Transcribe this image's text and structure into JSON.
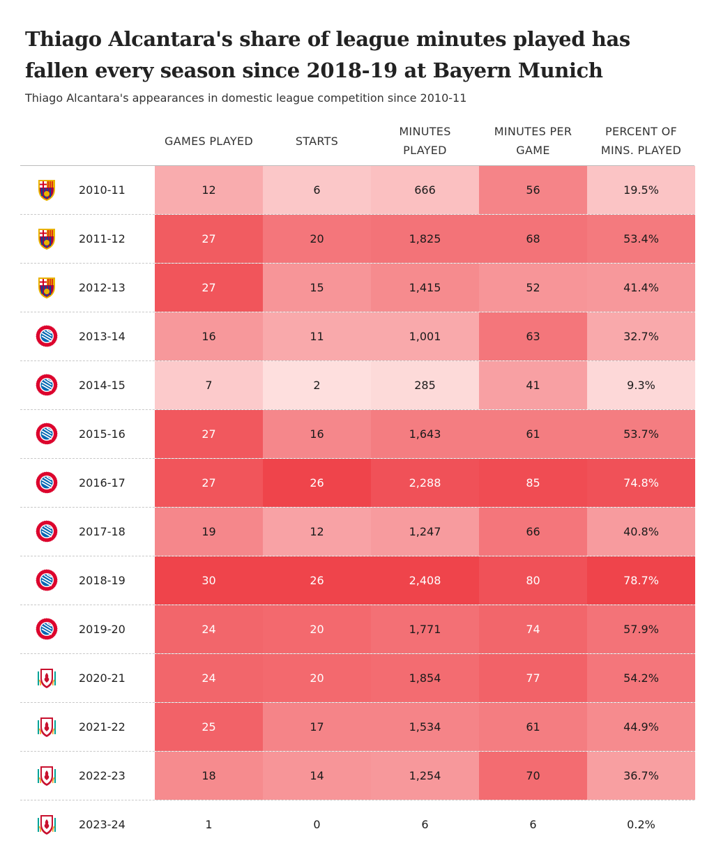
{
  "title": "Thiago Alcantara's share of league minutes played has fallen every season since 2018-19 at Bayern Munich",
  "subtitle": "Thiago Alcantara's appearances in domestic league competition since 2010-11",
  "chart_data": {
    "type": "table",
    "columns": [
      "GAMES PLAYED",
      "STARTS",
      "MINUTES PLAYED",
      "MINUTES PER GAME",
      "PERCENT OF MINS. PLAYED"
    ],
    "rows": [
      {
        "club": "barcelona",
        "season": "2010-11",
        "games": "12",
        "starts": "6",
        "minutes": "666",
        "mpg": "56",
        "pct": "19.5%",
        "shade": [
          0.38,
          0.22,
          0.26,
          0.62,
          0.24
        ]
      },
      {
        "club": "barcelona",
        "season": "2011-12",
        "games": "27",
        "starts": "20",
        "minutes": "1,825",
        "mpg": "68",
        "pct": "53.4%",
        "shade": [
          0.86,
          0.7,
          0.72,
          0.72,
          0.68
        ]
      },
      {
        "club": "barcelona",
        "season": "2012-13",
        "games": "27",
        "starts": "15",
        "minutes": "1,415",
        "mpg": "52",
        "pct": "41.4%",
        "shade": [
          0.9,
          0.52,
          0.58,
          0.52,
          0.5
        ]
      },
      {
        "club": "bayern",
        "season": "2013-14",
        "games": "16",
        "starts": "11",
        "minutes": "1,001",
        "mpg": "63",
        "pct": "32.7%",
        "shade": [
          0.5,
          0.4,
          0.4,
          0.7,
          0.4
        ]
      },
      {
        "club": "bayern",
        "season": "2014-15",
        "games": "7",
        "starts": "2",
        "minutes": "285",
        "mpg": "41",
        "pct": "9.3%",
        "shade": [
          0.2,
          0.08,
          0.11,
          0.45,
          0.12
        ]
      },
      {
        "club": "bayern",
        "season": "2015-16",
        "games": "27",
        "starts": "16",
        "minutes": "1,643",
        "mpg": "61",
        "pct": "53.7%",
        "shade": [
          0.88,
          0.6,
          0.66,
          0.66,
          0.66
        ]
      },
      {
        "club": "bayern",
        "season": "2016-17",
        "games": "27",
        "starts": "26",
        "minutes": "2,288",
        "mpg": "85",
        "pct": "74.8%",
        "shade": [
          0.9,
          1.0,
          0.92,
          0.95,
          0.92
        ]
      },
      {
        "club": "bayern",
        "season": "2017-18",
        "games": "19",
        "starts": "12",
        "minutes": "1,247",
        "mpg": "66",
        "pct": "40.8%",
        "shade": [
          0.6,
          0.44,
          0.48,
          0.7,
          0.48
        ]
      },
      {
        "club": "bayern",
        "season": "2018-19",
        "games": "30",
        "starts": "26",
        "minutes": "2,408",
        "mpg": "80",
        "pct": "78.7%",
        "shade": [
          1.0,
          1.0,
          1.0,
          0.92,
          1.0
        ]
      },
      {
        "club": "bayern",
        "season": "2019-20",
        "games": "24",
        "starts": "20",
        "minutes": "1,771",
        "mpg": "74",
        "pct": "57.9%",
        "shade": [
          0.8,
          0.78,
          0.74,
          0.8,
          0.72
        ]
      },
      {
        "club": "liverpool",
        "season": "2020-21",
        "games": "24",
        "starts": "20",
        "minutes": "1,854",
        "mpg": "77",
        "pct": "54.2%",
        "shade": [
          0.8,
          0.78,
          0.76,
          0.82,
          0.7
        ]
      },
      {
        "club": "liverpool",
        "season": "2021-22",
        "games": "25",
        "starts": "17",
        "minutes": "1,534",
        "mpg": "61",
        "pct": "44.9%",
        "shade": [
          0.82,
          0.62,
          0.62,
          0.66,
          0.58
        ]
      },
      {
        "club": "liverpool",
        "season": "2022-23",
        "games": "18",
        "starts": "14",
        "minutes": "1,254",
        "mpg": "70",
        "pct": "36.7%",
        "shade": [
          0.58,
          0.52,
          0.5,
          0.76,
          0.46
        ]
      },
      {
        "club": "liverpool",
        "season": "2023-24",
        "games": "1",
        "starts": "0",
        "minutes": "6",
        "mpg": "6",
        "pct": "0.2%",
        "shade": [
          0,
          0,
          0,
          0,
          0
        ]
      }
    ]
  },
  "colors": {
    "scale_light": "#ffeceb",
    "scale_dark": "#ef444b"
  }
}
